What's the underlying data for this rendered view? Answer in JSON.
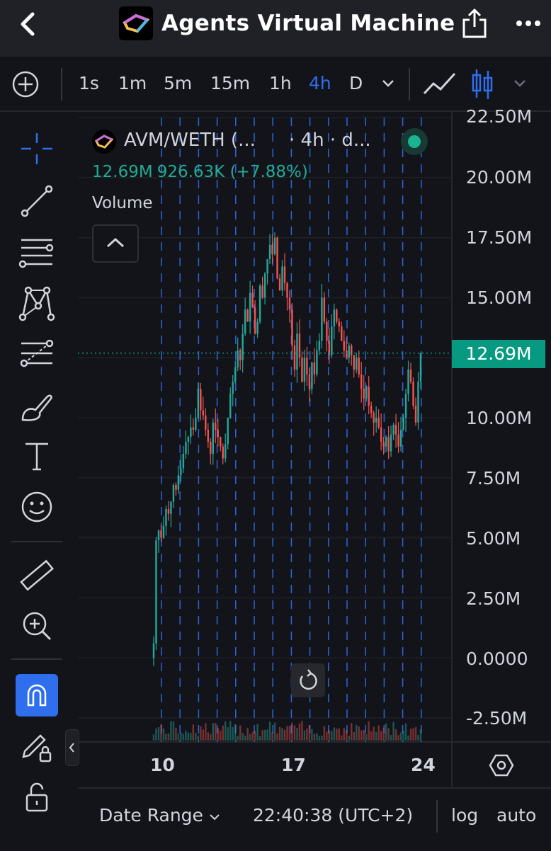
{
  "header": {
    "title": "Agents Virtual Machine",
    "back_icon": "chevron-left-icon",
    "share_icon": "share-icon",
    "more_icon": "ellipsis-icon"
  },
  "toolbar": {
    "add_icon": "plus-circle-icon",
    "timeframes": [
      "1s",
      "1m",
      "5m",
      "15m",
      "1h",
      "4h",
      "D"
    ],
    "active_timeframe": "4h",
    "chart_style_icon": "line-chart-icon",
    "candles_icon": "candlestick-icon"
  },
  "tools": [
    "crosshair-icon",
    "trend-line-icon",
    "fib-icon",
    "pattern-icon",
    "forecast-icon",
    "brush-icon",
    "text-icon",
    "emoji-icon",
    "ruler-icon",
    "zoom-in-icon",
    "magnet-icon",
    "lock-pencil-icon",
    "unlock-icon"
  ],
  "legend": {
    "symbol": "AVM/WETH (...",
    "timeframe": "· 4h · d...",
    "price": "12.69M",
    "change": "926.63K (+7.88%)",
    "volume_label": "Volume",
    "status_color": "#18b58f"
  },
  "colors": {
    "up": "#26a69a",
    "down": "#ef5350",
    "accent": "#2f6fee",
    "price_tag": "#089981"
  },
  "chart_data": {
    "type": "candlestick",
    "y_ticks": [
      "22.50M",
      "20.00M",
      "17.50M",
      "15.00M",
      "12.50M",
      "10.00M",
      "7.50M",
      "5.00M",
      "2.50M",
      "0.0000",
      "-2.50M"
    ],
    "ylim": [
      -2500000,
      22500000
    ],
    "x_ticks": [
      "10",
      "17",
      "24"
    ],
    "last_price_label": "12.69M",
    "close_series": [
      600000,
      4900000,
      5300000,
      5000000,
      5500000,
      6200000,
      6000000,
      6500000,
      7200000,
      7000000,
      7600000,
      7900000,
      8500000,
      9000000,
      9200000,
      9600000,
      9500000,
      10000000,
      11200000,
      10300000,
      10100000,
      9500000,
      9000000,
      8500000,
      9800000,
      9500000,
      9200000,
      8800000,
      8300000,
      8900000,
      10000000,
      11000000,
      11500000,
      12100000,
      12800000,
      12400000,
      13500000,
      14500000,
      14000000,
      15200000,
      14600000,
      13500000,
      14000000,
      15500000,
      15000000,
      16000000,
      16600000,
      17200000,
      16800000,
      17500000,
      15800000,
      15300000,
      16300000,
      15600000,
      15000000,
      14500000,
      13000000,
      12000000,
      13500000,
      12500000,
      11500000,
      12500000,
      11800000,
      11200000,
      12300000,
      11800000,
      12800000,
      13200000,
      15000000,
      14000000,
      13200000,
      12600000,
      13800000,
      14500000,
      14000000,
      13800000,
      13200000,
      12800000,
      12500000,
      13000000,
      12600000,
      12000000,
      12500000,
      11800000,
      11200000,
      10800000,
      11300000,
      10500000,
      10200000,
      9800000,
      10000000,
      9600000,
      9000000,
      8800000,
      9200000,
      8600000,
      9300000,
      9700000,
      9300000,
      8800000,
      9500000,
      10000000,
      11000000,
      12000000,
      11500000,
      10500000,
      9800000,
      11500000,
      12690000
    ],
    "grid": true
  },
  "bottom": {
    "date_range": "Date Range",
    "clock": "22:40:38 (UTC+2)",
    "log": "log",
    "auto": "auto"
  }
}
